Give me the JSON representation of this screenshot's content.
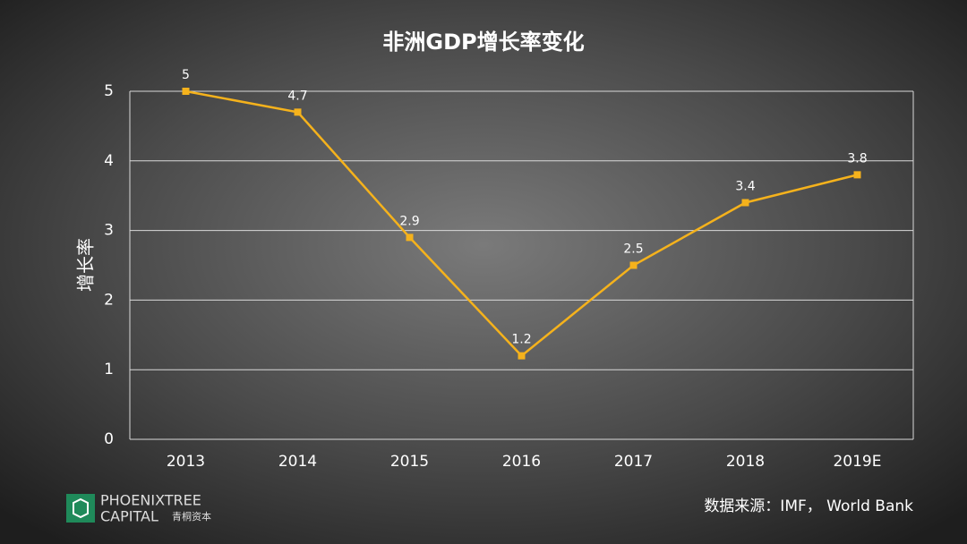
{
  "chart_data": {
    "type": "line",
    "title": "非洲GDP增长率变化",
    "y_label": "增长率",
    "categories": [
      "2013",
      "2014",
      "2015",
      "2016",
      "2017",
      "2018",
      "2019E"
    ],
    "series": [
      {
        "name": "增长率",
        "color": "#f5b21c",
        "values": [
          5,
          4.7,
          2.9,
          1.2,
          2.5,
          3.4,
          3.8
        ]
      }
    ],
    "ylim": [
      0,
      5
    ],
    "yticks": [
      0,
      1,
      2,
      3,
      4,
      5
    ],
    "grid": true,
    "legend": false,
    "source": "数据来源：IMF， World Bank"
  },
  "logo": {
    "line1": "PHOENIXTREE",
    "line2": "CAPITAL",
    "line3": "青桐资本"
  }
}
